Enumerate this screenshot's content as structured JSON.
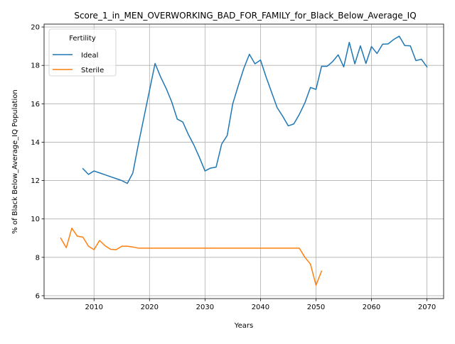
{
  "chart_data": {
    "type": "line",
    "title": "Score_1_in_MEN_OVERWORKING_BAD_FOR_FAMILY_for_Black_Below_Average_IQ",
    "xlabel": "Years",
    "ylabel": "% of Black Below_Average_IQ Population",
    "xlim": [
      2001,
      2073
    ],
    "ylim": [
      5.85,
      20.15
    ],
    "xticks": [
      2010,
      2020,
      2030,
      2040,
      2050,
      2060,
      2070
    ],
    "yticks": [
      6,
      8,
      10,
      12,
      14,
      16,
      18,
      20
    ],
    "grid": true,
    "legend": {
      "title": "Fertility",
      "position": "top-left"
    },
    "series": [
      {
        "name": "Ideal",
        "color": "#1f77b4",
        "x": [
          2008,
          2009,
          2010,
          2011,
          2012,
          2013,
          2014,
          2015,
          2016,
          2017,
          2018,
          2019,
          2020,
          2021,
          2022,
          2023,
          2024,
          2025,
          2026,
          2027,
          2028,
          2029,
          2030,
          2031,
          2032,
          2033,
          2034,
          2035,
          2036,
          2037,
          2038,
          2039,
          2040,
          2041,
          2042,
          2043,
          2044,
          2045,
          2046,
          2047,
          2048,
          2049,
          2050,
          2051,
          2052,
          2053,
          2054,
          2055,
          2056,
          2057,
          2058,
          2059,
          2060,
          2061,
          2062,
          2063,
          2064,
          2065,
          2066,
          2067,
          2068,
          2069,
          2070
        ],
        "y": [
          12.62,
          12.32,
          12.5,
          12.4,
          12.3,
          12.2,
          12.1,
          12.0,
          11.85,
          12.4,
          13.9,
          15.3,
          16.7,
          18.1,
          17.4,
          16.8,
          16.1,
          15.2,
          15.05,
          14.4,
          13.85,
          13.2,
          12.5,
          12.65,
          12.7,
          13.9,
          14.35,
          16.0,
          16.95,
          17.85,
          18.58,
          18.08,
          18.28,
          17.4,
          16.6,
          15.8,
          15.35,
          14.85,
          14.95,
          15.45,
          16.05,
          16.85,
          16.75,
          17.95,
          17.95,
          18.2,
          18.55,
          17.92,
          19.2,
          18.08,
          19.02,
          18.1,
          18.98,
          18.62,
          19.1,
          19.12,
          19.35,
          19.52,
          19.03,
          19.02,
          18.25,
          18.32,
          17.92
        ]
      },
      {
        "name": "Sterile",
        "color": "#ff7f0e",
        "x": [
          2004,
          2005,
          2006,
          2007,
          2008,
          2009,
          2010,
          2011,
          2012,
          2013,
          2014,
          2015,
          2016,
          2017,
          2018,
          2019,
          2020,
          2021,
          2022,
          2023,
          2024,
          2025,
          2026,
          2027,
          2028,
          2029,
          2030,
          2031,
          2032,
          2033,
          2034,
          2035,
          2036,
          2037,
          2038,
          2039,
          2040,
          2041,
          2042,
          2043,
          2044,
          2045,
          2046,
          2047,
          2048,
          2049,
          2050,
          2051
        ],
        "y": [
          9.0,
          8.5,
          9.52,
          9.1,
          9.05,
          8.58,
          8.4,
          8.88,
          8.6,
          8.42,
          8.4,
          8.58,
          8.58,
          8.54,
          8.48,
          8.48,
          8.48,
          8.48,
          8.48,
          8.48,
          8.48,
          8.48,
          8.48,
          8.48,
          8.48,
          8.48,
          8.48,
          8.48,
          8.48,
          8.48,
          8.48,
          8.48,
          8.48,
          8.48,
          8.48,
          8.48,
          8.48,
          8.48,
          8.48,
          8.48,
          8.48,
          8.48,
          8.48,
          8.48,
          8.0,
          7.65,
          6.55,
          7.28
        ]
      }
    ]
  }
}
